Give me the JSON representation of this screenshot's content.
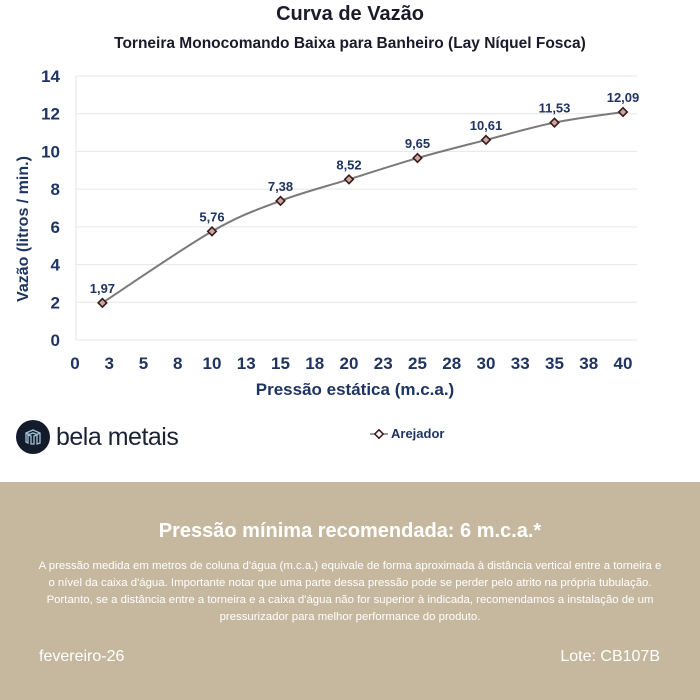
{
  "chart_data": {
    "type": "line",
    "title": "Curva de Vazão",
    "subtitle": "Torneira Monocomando Baixa para Banheiro (Lay Níquel Fosca)",
    "xlabel": "Pressão estática (m.c.a.)",
    "ylabel": "Vazão (litros / min.)",
    "xlim": [
      0,
      40
    ],
    "ylim": [
      0,
      14
    ],
    "x_ticks": [
      "0",
      "3",
      "5",
      "8",
      "10",
      "13",
      "15",
      "18",
      "20",
      "23",
      "25",
      "28",
      "30",
      "33",
      "35",
      "38",
      "40"
    ],
    "x_tick_values": [
      0,
      2.5,
      5,
      7.5,
      10,
      12.5,
      15,
      17.5,
      20,
      22.5,
      25,
      27.5,
      30,
      32.5,
      35,
      37.5,
      40
    ],
    "y_ticks": [
      "0",
      "2",
      "4",
      "6",
      "8",
      "10",
      "12",
      "14"
    ],
    "y_tick_values": [
      0,
      2,
      4,
      6,
      8,
      10,
      12,
      14
    ],
    "grid": true,
    "legend_position": "bottom-center",
    "series": [
      {
        "name": "Arejador",
        "x": [
          2,
          10,
          15,
          20,
          25,
          30,
          35,
          40
        ],
        "values": [
          1.97,
          5.76,
          7.38,
          8.52,
          9.65,
          10.61,
          11.53,
          12.09
        ],
        "labels": [
          "1,97",
          "5,76",
          "7,38",
          "8,52",
          "9,65",
          "10,61",
          "11,53",
          "12,09"
        ]
      }
    ],
    "colors": {
      "line": "#7a7a7a",
      "marker": "#3a1a1a",
      "axis_text": "#1f3461",
      "grid": "#e6e6e6"
    }
  },
  "brand": {
    "name": "bela metais"
  },
  "footer": {
    "title": "Pressão mínima recomendada: 6 m.c.a.*",
    "body": "A pressão medida em metros de coluna d'água (m.c.a.) equivale de forma aproximada à distância vertical entre a torneira e o nível da caixa d'água. Importante notar que uma parte dessa pressão pode se perder pelo atrito na própria tubulação. Portanto, se a distância entre a torneira e a caixa d'água não for superior à indicada, recomendamos a instalação de um pressurizador para melhor performance do produto.",
    "date": "fevereiro-26",
    "lote": "Lote: CB107B",
    "background": "#c6b89f"
  }
}
